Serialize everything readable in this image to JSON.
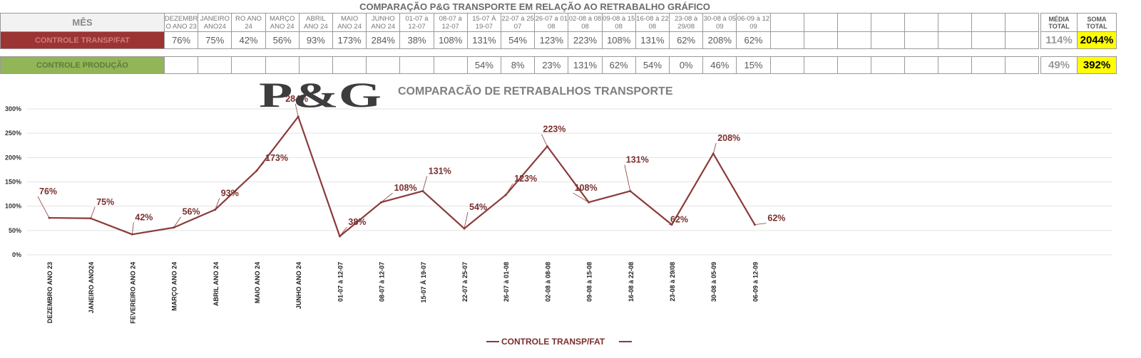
{
  "title": "COMPARAÇÃO P&G  TRANSPORTE EM RELAÇÃO AO RETRABALHO GRÁFICO",
  "table": {
    "mes_label": "MÊS",
    "periods": [
      "DEZEMBR O ANO 23",
      "JANEIRO ANO24",
      "RO ANO 24",
      "MARÇO ANO 24",
      "ABRIL ANO 24",
      "MAIO ANO 24",
      "JUNHO ANO 24",
      "01-07 à 12-07",
      "08-07 à 12-07",
      "15-07 À 19-07",
      "22-07 à 25 07",
      "26-07 à 01 08",
      "02-08 à 08 08",
      "09-08 à 15 08",
      "16-08 à 22 08",
      "23-08 à 29/08",
      "30-08 à 05 09",
      "06-09 à 12 09"
    ],
    "media_label": "MÉDIA TOTAL",
    "soma_label": "SOMA TOTAL",
    "rows": [
      {
        "label": "CONTROLE TRANSP/FAT",
        "values": [
          "76%",
          "75%",
          "42%",
          "56%",
          "93%",
          "173%",
          "284%",
          "38%",
          "108%",
          "131%",
          "54%",
          "123%",
          "223%",
          "108%",
          "131%",
          "62%",
          "208%",
          "62%"
        ],
        "media": "114%",
        "soma": "2044%"
      },
      {
        "label": "CONTROLE PRODUÇÃO",
        "values": [
          "",
          "",
          "",
          "",
          "",
          "",
          "",
          "",
          "",
          "54%",
          "8%",
          "23%",
          "131%",
          "62%",
          "54%",
          "0%",
          "46%",
          "15%"
        ],
        "media": "49%",
        "soma": "392%"
      }
    ]
  },
  "logo_text": "P&G",
  "colors": {
    "line": "#8b3a3a",
    "label": "#7a2e2e",
    "row1": "#9c3434",
    "row2": "#92b557",
    "highlight": "#ffff00"
  },
  "chart_data": {
    "type": "line",
    "title": "COMPARACÃO DE RETRABALHOS TRANSPORTE",
    "categories": [
      "DEZEMBRO ANO 23",
      "JANEIRO ANO24",
      "FEVEREIRO ANO 24",
      "MARÇO ANO 24",
      "ABRIL    ANO 24",
      "MAIO     ANO 24",
      "JUNHO     ANO 24",
      "01-07 à 12-07",
      "08-07 à 12-07",
      "15-07 À 19-07",
      "22-07 à 25-07",
      "26-07 à 01-08",
      "02-08 à 08-08",
      "09-08 à 15-08",
      "16-08 à 22-08",
      "23-08 à 29/08",
      "30-08 à 05-09",
      "06-09 à 12-09"
    ],
    "series": [
      {
        "name": "CONTROLE TRANSP/FAT",
        "values": [
          76,
          75,
          42,
          56,
          93,
          173,
          284,
          38,
          108,
          131,
          54,
          123,
          223,
          108,
          131,
          62,
          208,
          62
        ]
      }
    ],
    "data_labels": [
      "76%",
      "75%",
      "42%",
      "56%",
      "93%",
      "173%",
      "284%",
      "38%",
      "108%",
      "131%",
      "54%",
      "123%",
      "223%",
      "108%",
      "131%",
      "62%",
      "208%",
      "62%"
    ],
    "yticks": [
      "0%",
      "50%",
      "100%",
      "150%",
      "200%",
      "250%",
      "300%"
    ],
    "ylim": [
      0,
      300
    ],
    "grid": true,
    "legend": "bottom"
  }
}
